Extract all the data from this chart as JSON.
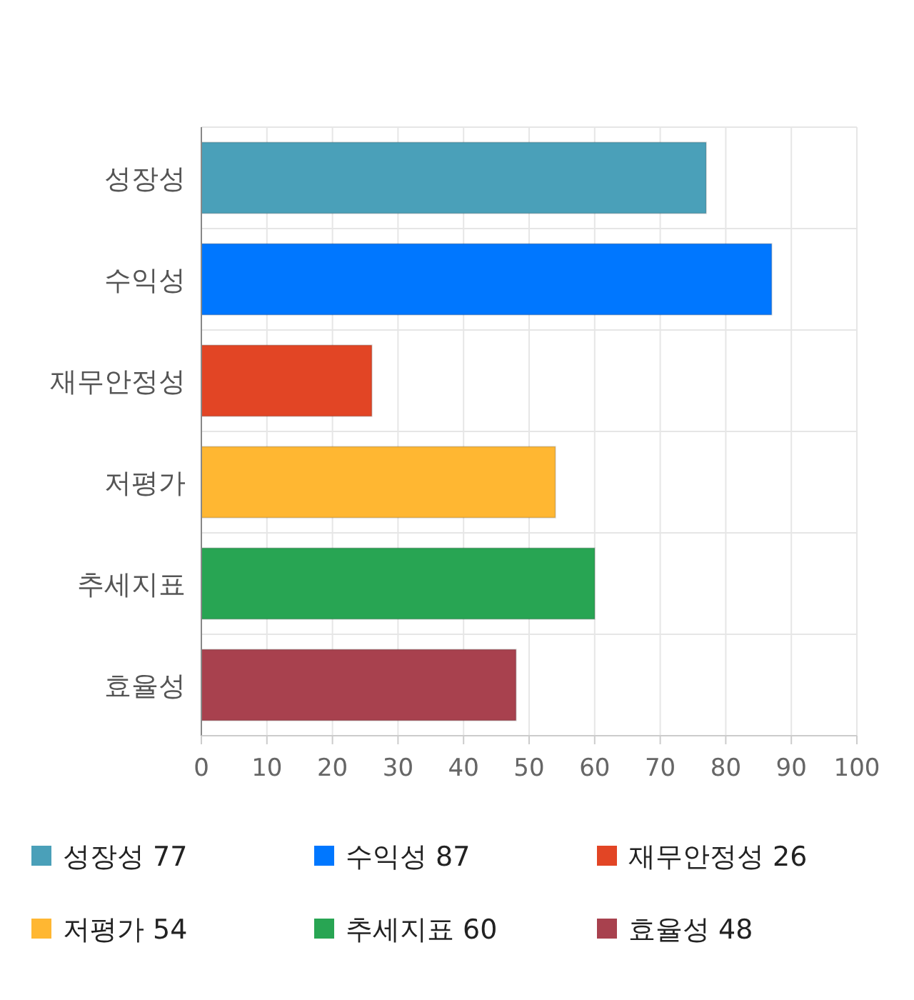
{
  "chart_data": {
    "type": "bar",
    "orientation": "horizontal",
    "stacked": true,
    "categories": [
      "성장성",
      "수익성",
      "재무안정성",
      "저평가",
      "추세지표",
      "효율성"
    ],
    "series": [
      {
        "name": "성장성 77",
        "color": "#4aa0b9",
        "values": [
          77,
          null,
          null,
          null,
          null,
          null
        ]
      },
      {
        "name": "수익성 87",
        "color": "#0077ff",
        "values": [
          null,
          87,
          null,
          null,
          null,
          null
        ]
      },
      {
        "name": "재무안정성 26",
        "color": "#e24525",
        "values": [
          null,
          null,
          26,
          null,
          null,
          null
        ]
      },
      {
        "name": "저평가 54",
        "color": "#ffb732",
        "values": [
          null,
          null,
          null,
          54,
          null,
          null
        ]
      },
      {
        "name": "추세지표 60",
        "color": "#28a553",
        "values": [
          null,
          null,
          null,
          null,
          60,
          null
        ]
      },
      {
        "name": "효율성 48",
        "color": "#a8414e",
        "values": [
          null,
          null,
          null,
          null,
          null,
          48
        ]
      }
    ],
    "xlim": [
      0,
      100
    ],
    "xticks": [
      0,
      10,
      20,
      30,
      40,
      50,
      60,
      70,
      80,
      90,
      100
    ],
    "grid": true,
    "legend": "bottom"
  }
}
